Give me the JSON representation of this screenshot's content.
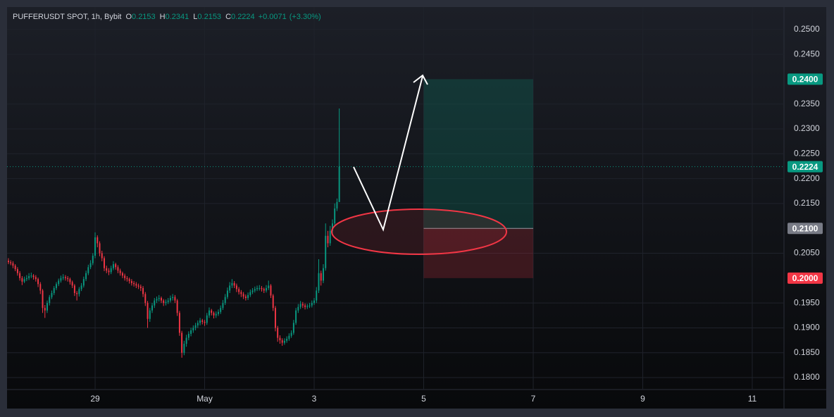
{
  "chart_data": {
    "type": "candlestick",
    "legend": {
      "symbol": "PUFFERUSDT SPOT, 1h, Bybit",
      "items": [
        {
          "label": "O",
          "value": 0.2153
        },
        {
          "label": "H",
          "value": 0.2341
        },
        {
          "label": "L",
          "value": 0.2153
        },
        {
          "label": "C",
          "value": 0.2224
        }
      ],
      "change": "+0.0071",
      "change_pct": "(+3.30%)"
    },
    "up_color": "#089981",
    "down_color": "#f23645",
    "xlim": [
      -38.6,
      301.9
    ],
    "xticks": [
      {
        "value": 0,
        "label": "29"
      },
      {
        "value": 48,
        "label": "May"
      },
      {
        "value": 96,
        "label": "3"
      },
      {
        "value": 144,
        "label": "5"
      },
      {
        "value": 192,
        "label": "7"
      },
      {
        "value": 240,
        "label": "9"
      },
      {
        "value": 288,
        "label": "11"
      }
    ],
    "ylim": [
      0.1776,
      0.2545
    ],
    "yticks": [
      {
        "value": 0.25,
        "label": "0.2500"
      },
      {
        "value": 0.245,
        "label": "0.2450"
      },
      {
        "value": 0.235,
        "label": "0.2350"
      },
      {
        "value": 0.23,
        "label": "0.2300"
      },
      {
        "value": 0.225,
        "label": "0.2250"
      },
      {
        "value": 0.22,
        "label": "0.2200"
      },
      {
        "value": 0.215,
        "label": "0.2150"
      },
      {
        "value": 0.205,
        "label": "0.2050"
      },
      {
        "value": 0.195,
        "label": "0.1950"
      },
      {
        "value": 0.19,
        "label": "0.1900"
      },
      {
        "value": 0.185,
        "label": "0.1850"
      },
      {
        "value": 0.18,
        "label": "0.1800"
      }
    ],
    "last_price": {
      "value": 0.2224,
      "label": "0.2224"
    },
    "position": {
      "target": {
        "value": 0.24,
        "label": "0.2400"
      },
      "entry": {
        "value": 0.21,
        "label": "0.2100"
      },
      "stop": {
        "value": 0.2,
        "label": "0.2000"
      },
      "x": [
        144,
        192
      ]
    },
    "x": [
      -38,
      -37,
      -36,
      -35,
      -34,
      -33,
      -32,
      -31,
      -30,
      -29,
      -28,
      -27,
      -26,
      -25,
      -24,
      -23,
      -22,
      -21,
      -20,
      -19,
      -18,
      -17,
      -16,
      -15,
      -14,
      -13,
      -12,
      -11,
      -10,
      -9,
      -8,
      -7,
      -6,
      -5,
      -4,
      -3,
      -2,
      -1,
      0,
      1,
      2,
      3,
      4,
      5,
      6,
      7,
      8,
      9,
      10,
      11,
      12,
      13,
      14,
      15,
      16,
      17,
      18,
      19,
      20,
      21,
      22,
      23,
      24,
      25,
      26,
      27,
      28,
      29,
      30,
      31,
      32,
      33,
      34,
      35,
      36,
      37,
      38,
      39,
      40,
      41,
      42,
      43,
      44,
      45,
      46,
      47,
      48,
      49,
      50,
      51,
      52,
      53,
      54,
      55,
      56,
      57,
      58,
      59,
      60,
      61,
      62,
      63,
      64,
      65,
      66,
      67,
      68,
      69,
      70,
      71,
      72,
      73,
      74,
      75,
      76,
      77,
      78,
      79,
      80,
      81,
      82,
      83,
      84,
      85,
      86,
      87,
      88,
      89,
      90,
      91,
      92,
      93,
      94,
      95,
      96,
      97,
      98,
      99,
      100,
      101,
      102,
      103,
      104,
      105,
      106,
      107
    ],
    "ohlc": [
      [
        0.2035,
        0.204,
        0.2028,
        0.2032
      ],
      [
        0.2032,
        0.2036,
        0.2026,
        0.203
      ],
      [
        0.203,
        0.2034,
        0.202,
        0.2025
      ],
      [
        0.2025,
        0.2028,
        0.2014,
        0.2018
      ],
      [
        0.2018,
        0.2022,
        0.2005,
        0.201
      ],
      [
        0.201,
        0.2014,
        0.1995,
        0.2
      ],
      [
        0.2,
        0.2004,
        0.1986,
        0.1993
      ],
      [
        0.1993,
        0.2003,
        0.199,
        0.1998
      ],
      [
        0.1998,
        0.2006,
        0.1994,
        0.2
      ],
      [
        0.2,
        0.201,
        0.1996,
        0.2004
      ],
      [
        0.2004,
        0.2011,
        0.2,
        0.2005
      ],
      [
        0.2005,
        0.2008,
        0.1997,
        0.2002
      ],
      [
        0.2002,
        0.2006,
        0.1993,
        0.1998
      ],
      [
        0.1998,
        0.2001,
        0.1982,
        0.1988
      ],
      [
        0.1988,
        0.1992,
        0.1968,
        0.1975
      ],
      [
        0.1975,
        0.1978,
        0.193,
        0.194
      ],
      [
        0.194,
        0.1946,
        0.192,
        0.1935
      ],
      [
        0.1935,
        0.1955,
        0.193,
        0.195
      ],
      [
        0.195,
        0.1966,
        0.1945,
        0.1962
      ],
      [
        0.1962,
        0.1975,
        0.1958,
        0.197
      ],
      [
        0.197,
        0.1984,
        0.1966,
        0.198
      ],
      [
        0.198,
        0.1992,
        0.1976,
        0.1988
      ],
      [
        0.1988,
        0.1999,
        0.1984,
        0.1995
      ],
      [
        0.1995,
        0.2005,
        0.1991,
        0.2
      ],
      [
        0.2,
        0.2008,
        0.1996,
        0.2002
      ],
      [
        0.2002,
        0.2006,
        0.1995,
        0.2
      ],
      [
        0.2,
        0.2004,
        0.1993,
        0.1998
      ],
      [
        0.1998,
        0.2001,
        0.1987,
        0.1992
      ],
      [
        0.1992,
        0.1995,
        0.198,
        0.1985
      ],
      [
        0.1985,
        0.1988,
        0.1964,
        0.197
      ],
      [
        0.197,
        0.1974,
        0.1955,
        0.1968
      ],
      [
        0.1968,
        0.1982,
        0.1963,
        0.1978
      ],
      [
        0.1978,
        0.199,
        0.1974,
        0.1985
      ],
      [
        0.1985,
        0.2003,
        0.1981,
        0.1998
      ],
      [
        0.1998,
        0.2015,
        0.1994,
        0.201
      ],
      [
        0.201,
        0.2027,
        0.2006,
        0.2022
      ],
      [
        0.2022,
        0.2036,
        0.2018,
        0.203
      ],
      [
        0.203,
        0.205,
        0.2026,
        0.2045
      ],
      [
        0.2045,
        0.2092,
        0.204,
        0.2082
      ],
      [
        0.2082,
        0.2086,
        0.2062,
        0.207
      ],
      [
        0.207,
        0.2074,
        0.2044,
        0.205
      ],
      [
        0.205,
        0.2055,
        0.2034,
        0.204
      ],
      [
        0.204,
        0.2044,
        0.2014,
        0.202
      ],
      [
        0.202,
        0.2025,
        0.201,
        0.2015
      ],
      [
        0.2015,
        0.202,
        0.2006,
        0.2012
      ],
      [
        0.2012,
        0.2025,
        0.2008,
        0.202
      ],
      [
        0.202,
        0.2034,
        0.2016,
        0.2028
      ],
      [
        0.2028,
        0.2031,
        0.2017,
        0.2022
      ],
      [
        0.2022,
        0.2026,
        0.201,
        0.2015
      ],
      [
        0.2015,
        0.2019,
        0.2005,
        0.201
      ],
      [
        0.201,
        0.2013,
        0.2,
        0.2005
      ],
      [
        0.2005,
        0.2009,
        0.1995,
        0.2
      ],
      [
        0.2,
        0.2004,
        0.1993,
        0.1998
      ],
      [
        0.1998,
        0.2001,
        0.1989,
        0.1994
      ],
      [
        0.1994,
        0.1998,
        0.1985,
        0.199
      ],
      [
        0.199,
        0.1994,
        0.1983,
        0.1988
      ],
      [
        0.1988,
        0.1992,
        0.198,
        0.1985
      ],
      [
        0.1985,
        0.1989,
        0.1978,
        0.1983
      ],
      [
        0.1983,
        0.1987,
        0.1974,
        0.198
      ],
      [
        0.198,
        0.1984,
        0.1962,
        0.1968
      ],
      [
        0.1968,
        0.1972,
        0.1944,
        0.195
      ],
      [
        0.195,
        0.1954,
        0.19,
        0.1918
      ],
      [
        0.1918,
        0.194,
        0.1912,
        0.1935
      ],
      [
        0.1935,
        0.195,
        0.193,
        0.1945
      ],
      [
        0.1945,
        0.196,
        0.194,
        0.1955
      ],
      [
        0.1955,
        0.1963,
        0.195,
        0.1958
      ],
      [
        0.1958,
        0.1966,
        0.1953,
        0.196
      ],
      [
        0.196,
        0.1963,
        0.195,
        0.1955
      ],
      [
        0.1955,
        0.1958,
        0.1944,
        0.195
      ],
      [
        0.195,
        0.1957,
        0.1945,
        0.1952
      ],
      [
        0.1952,
        0.196,
        0.1948,
        0.1955
      ],
      [
        0.1955,
        0.1965,
        0.1951,
        0.196
      ],
      [
        0.196,
        0.1968,
        0.1955,
        0.1962
      ],
      [
        0.1962,
        0.1966,
        0.195,
        0.1955
      ],
      [
        0.1955,
        0.1958,
        0.1924,
        0.193
      ],
      [
        0.193,
        0.1934,
        0.1884,
        0.189
      ],
      [
        0.189,
        0.1894,
        0.184,
        0.185
      ],
      [
        0.185,
        0.1874,
        0.1845,
        0.1868
      ],
      [
        0.1868,
        0.1886,
        0.1862,
        0.188
      ],
      [
        0.188,
        0.1893,
        0.1875,
        0.1888
      ],
      [
        0.1888,
        0.19,
        0.1883,
        0.1895
      ],
      [
        0.1895,
        0.1905,
        0.189,
        0.19
      ],
      [
        0.19,
        0.191,
        0.1895,
        0.1905
      ],
      [
        0.1905,
        0.1915,
        0.19,
        0.191
      ],
      [
        0.191,
        0.192,
        0.1905,
        0.1915
      ],
      [
        0.1915,
        0.1918,
        0.1907,
        0.1912
      ],
      [
        0.1912,
        0.1916,
        0.1904,
        0.191
      ],
      [
        0.191,
        0.193,
        0.1906,
        0.1925
      ],
      [
        0.1925,
        0.1941,
        0.192,
        0.1935
      ],
      [
        0.1935,
        0.1938,
        0.1925,
        0.193
      ],
      [
        0.193,
        0.1933,
        0.1919,
        0.1925
      ],
      [
        0.1925,
        0.1933,
        0.192,
        0.1928
      ],
      [
        0.1928,
        0.1937,
        0.1924,
        0.1932
      ],
      [
        0.1932,
        0.1945,
        0.1928,
        0.194
      ],
      [
        0.194,
        0.1956,
        0.1936,
        0.195
      ],
      [
        0.195,
        0.1968,
        0.1946,
        0.1962
      ],
      [
        0.1962,
        0.1981,
        0.1958,
        0.1975
      ],
      [
        0.1975,
        0.1992,
        0.197,
        0.1985
      ],
      [
        0.1985,
        0.1998,
        0.198,
        0.199
      ],
      [
        0.199,
        0.1994,
        0.198,
        0.1985
      ],
      [
        0.1985,
        0.1989,
        0.1972,
        0.1978
      ],
      [
        0.1978,
        0.1982,
        0.1967,
        0.1972
      ],
      [
        0.1972,
        0.1976,
        0.1962,
        0.1968
      ],
      [
        0.1968,
        0.1972,
        0.1958,
        0.1963
      ],
      [
        0.1963,
        0.1967,
        0.1955,
        0.196
      ],
      [
        0.196,
        0.1971,
        0.1956,
        0.1966
      ],
      [
        0.1966,
        0.1977,
        0.1962,
        0.1972
      ],
      [
        0.1972,
        0.198,
        0.1968,
        0.1975
      ],
      [
        0.1975,
        0.1983,
        0.1971,
        0.1978
      ],
      [
        0.1978,
        0.1985,
        0.1974,
        0.198
      ],
      [
        0.198,
        0.1986,
        0.1975,
        0.198
      ],
      [
        0.198,
        0.1984,
        0.1973,
        0.1978
      ],
      [
        0.1978,
        0.1981,
        0.197,
        0.1975
      ],
      [
        0.1975,
        0.1986,
        0.1971,
        0.198
      ],
      [
        0.198,
        0.1995,
        0.1976,
        0.1985
      ],
      [
        0.1985,
        0.1988,
        0.196,
        0.1965
      ],
      [
        0.1965,
        0.1968,
        0.1934,
        0.194
      ],
      [
        0.194,
        0.1944,
        0.1893,
        0.19
      ],
      [
        0.19,
        0.1904,
        0.1872,
        0.188
      ],
      [
        0.188,
        0.1885,
        0.1868,
        0.1875
      ],
      [
        0.1875,
        0.1879,
        0.1864,
        0.187
      ],
      [
        0.187,
        0.1879,
        0.1866,
        0.1874
      ],
      [
        0.1874,
        0.1883,
        0.187,
        0.1878
      ],
      [
        0.1878,
        0.1889,
        0.1874,
        0.1884
      ],
      [
        0.1884,
        0.1895,
        0.188,
        0.189
      ],
      [
        0.189,
        0.1916,
        0.1886,
        0.191
      ],
      [
        0.191,
        0.194,
        0.1906,
        0.1935
      ],
      [
        0.1935,
        0.1948,
        0.193,
        0.1942
      ],
      [
        0.1942,
        0.1954,
        0.1938,
        0.1948
      ],
      [
        0.1948,
        0.1952,
        0.194,
        0.1945
      ],
      [
        0.1945,
        0.1949,
        0.1937,
        0.1942
      ],
      [
        0.1942,
        0.1948,
        0.1938,
        0.1944
      ],
      [
        0.1944,
        0.195,
        0.194,
        0.1945
      ],
      [
        0.1945,
        0.1955,
        0.1941,
        0.195
      ],
      [
        0.195,
        0.196,
        0.1946,
        0.1955
      ],
      [
        0.1955,
        0.1982,
        0.195,
        0.1975
      ],
      [
        0.1975,
        0.2038,
        0.197,
        0.201
      ],
      [
        0.201,
        0.2015,
        0.1985,
        0.1995
      ],
      [
        0.1995,
        0.2028,
        0.199,
        0.202
      ],
      [
        0.202,
        0.211,
        0.2015,
        0.2085
      ],
      [
        0.2085,
        0.2095,
        0.2062,
        0.207
      ],
      [
        0.207,
        0.2105,
        0.2065,
        0.2095
      ],
      [
        0.2095,
        0.2118,
        0.2088,
        0.211
      ],
      [
        0.211,
        0.215,
        0.2105,
        0.214
      ],
      [
        0.214,
        0.216,
        0.2135,
        0.2153
      ],
      [
        0.2153,
        0.2341,
        0.2153,
        0.2224
      ]
    ]
  }
}
